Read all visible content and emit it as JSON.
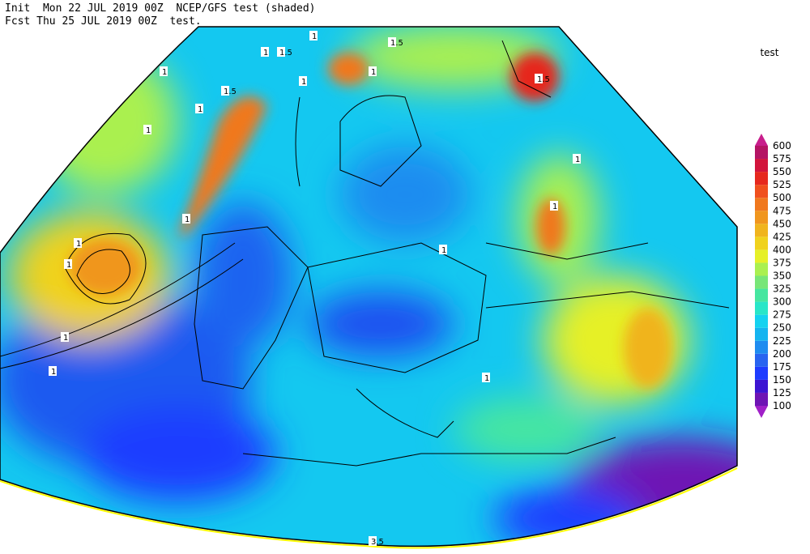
{
  "header": {
    "line1": "Init  Mon 22 JUL 2019 00Z  NCEP/GFS test (shaded)",
    "line2": "Fcst Thu 25 JUL 2019 00Z  test."
  },
  "legend": {
    "title": "test",
    "levels": [
      100,
      125,
      150,
      175,
      200,
      225,
      250,
      275,
      300,
      325,
      350,
      375,
      400,
      425,
      450,
      475,
      500,
      525,
      550,
      575,
      600
    ],
    "colors": [
      "#a020c8",
      "#6e14b4",
      "#3c14d2",
      "#1e3cff",
      "#2864f0",
      "#1e8cf0",
      "#14b4f0",
      "#14d2f0",
      "#28e6c8",
      "#46e6a0",
      "#78e678",
      "#aaf050",
      "#e6f028",
      "#f0d21e",
      "#f0b41e",
      "#f0961e",
      "#f0781e",
      "#f0501e",
      "#e6281e",
      "#d2143c",
      "#b41464",
      "#c81e8c"
    ]
  },
  "contour_labels": [
    "1",
    "1.5",
    "1.5",
    "1",
    "1",
    "1.5",
    "1",
    "1",
    "1",
    "1",
    "1",
    "1",
    "1",
    "1",
    "1",
    "1",
    "1",
    "1.5",
    "1",
    "1",
    "3.5"
  ]
}
